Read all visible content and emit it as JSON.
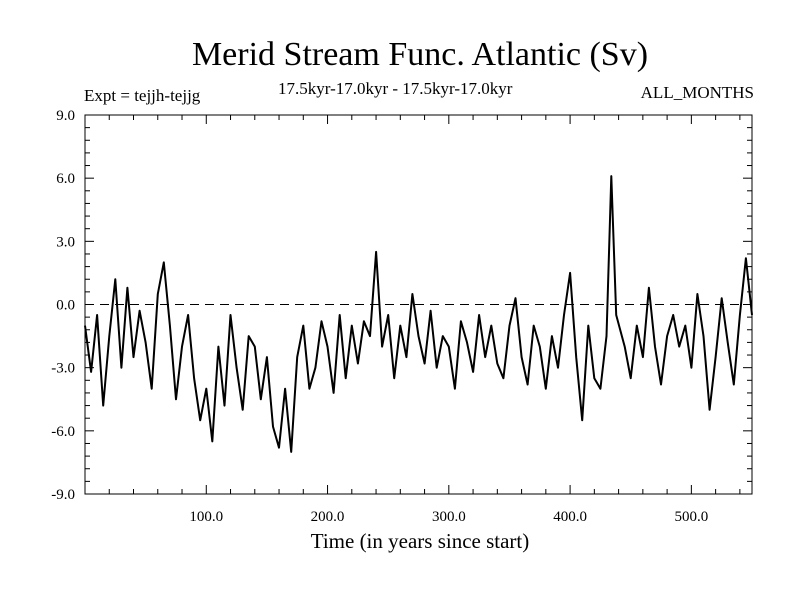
{
  "chart_data": {
    "type": "line",
    "title": "Merid Stream Func. Atlantic (Sv)",
    "subtitle": "17.5kyr-17.0kyr - 17.5kyr-17.0kyr",
    "experiment": "Expt = tejjh-tejjg",
    "period": "ALL_MONTHS",
    "xlabel": "Time (in years since start)",
    "ylabel": "",
    "xlim": [
      0,
      550
    ],
    "ylim": [
      -9.0,
      9.0
    ],
    "xticks": [
      100.0,
      200.0,
      300.0,
      400.0,
      500.0
    ],
    "xtick_labels": [
      "100.0",
      "200.0",
      "300.0",
      "400.0",
      "500.0"
    ],
    "yticks": [
      -9.0,
      -6.0,
      -3.0,
      0.0,
      3.0,
      6.0,
      9.0
    ],
    "ytick_labels": [
      "-9.0",
      "-6.0",
      "-3.0",
      "0.0",
      "3.0",
      "6.0",
      "9.0"
    ],
    "reference_line": 0.0,
    "series": [
      {
        "x": [
          0,
          5,
          10,
          15,
          20,
          25,
          30,
          35,
          40,
          45,
          50,
          55,
          60,
          65,
          70,
          75,
          80,
          85,
          90,
          95,
          100,
          105,
          110,
          115,
          120,
          125,
          130,
          135,
          140,
          145,
          150,
          155,
          160,
          165,
          170,
          175,
          180,
          185,
          190,
          195,
          200,
          205,
          210,
          215,
          220,
          225,
          230,
          235,
          240,
          245,
          250,
          255,
          260,
          265,
          270,
          275,
          280,
          285,
          290,
          295,
          300,
          305,
          310,
          315,
          320,
          325,
          330,
          335,
          340,
          345,
          350,
          355,
          360,
          365,
          370,
          375,
          380,
          385,
          390,
          395,
          400,
          405,
          410,
          415,
          420,
          425,
          430,
          434,
          438,
          445,
          450,
          455,
          460,
          465,
          470,
          475,
          480,
          485,
          490,
          495,
          500,
          505,
          510,
          515,
          520,
          525,
          530,
          535,
          540,
          545,
          550
        ],
        "values": [
          -1.0,
          -3.2,
          -0.5,
          -4.8,
          -1.5,
          1.2,
          -3.0,
          0.8,
          -2.5,
          -0.3,
          -1.8,
          -4.0,
          0.5,
          2.0,
          -1.0,
          -4.5,
          -2.0,
          -0.5,
          -3.5,
          -5.5,
          -4.0,
          -6.5,
          -2.0,
          -4.8,
          -0.5,
          -3.0,
          -5.0,
          -1.5,
          -2.0,
          -4.5,
          -2.5,
          -5.8,
          -6.8,
          -4.0,
          -7.0,
          -2.5,
          -1.0,
          -4.0,
          -3.0,
          -0.8,
          -2.0,
          -4.2,
          -0.5,
          -3.5,
          -1.0,
          -2.8,
          -0.8,
          -1.5,
          2.5,
          -2.0,
          -0.5,
          -3.5,
          -1.0,
          -2.5,
          0.5,
          -1.5,
          -2.8,
          -0.3,
          -3.0,
          -1.5,
          -2.0,
          -4.0,
          -0.8,
          -1.8,
          -3.2,
          -0.5,
          -2.5,
          -1.0,
          -2.8,
          -3.5,
          -1.0,
          0.3,
          -2.5,
          -3.8,
          -1.0,
          -2.0,
          -4.0,
          -1.5,
          -3.0,
          -0.5,
          1.5,
          -2.5,
          -5.5,
          -1.0,
          -3.5,
          -4.0,
          -1.5,
          6.1,
          -0.5,
          -2.0,
          -3.5,
          -1.0,
          -2.5,
          0.8,
          -2.0,
          -3.8,
          -1.5,
          -0.5,
          -2.0,
          -1.0,
          -3.0,
          0.5,
          -1.5,
          -5.0,
          -2.5,
          0.3,
          -1.8,
          -3.8,
          -0.5,
          2.2,
          -0.5
        ]
      }
    ]
  }
}
